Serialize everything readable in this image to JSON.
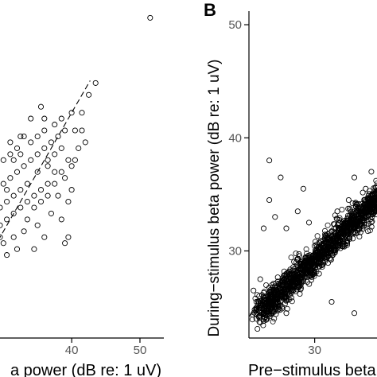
{
  "chart_data": [
    {
      "panel": "",
      "type": "scatter",
      "xlabel": "a power (dB re: 1 uV)",
      "ylabel": "",
      "xlim": [
        26.0,
        53.5
      ],
      "ylim": [
        21.0,
        49.5
      ],
      "x_ticks": [
        40,
        50
      ],
      "x_tick_labels": [
        "40",
        "50"
      ],
      "identity_line": true,
      "grid": false,
      "points_clustered": [
        [
          31.0,
          37.5
        ],
        [
          32.5,
          38.0
        ],
        [
          34.0,
          39.5
        ],
        [
          35.5,
          40.5
        ],
        [
          36.0,
          39.5
        ],
        [
          37.5,
          39.0
        ],
        [
          38.5,
          39.5
        ],
        [
          40.0,
          40.0
        ],
        [
          41.5,
          40.0
        ],
        [
          42.5,
          41.5
        ],
        [
          42.0,
          37.5
        ],
        [
          41.0,
          37.0
        ],
        [
          40.5,
          36.0
        ],
        [
          40.0,
          35.5
        ],
        [
          39.5,
          36.0
        ],
        [
          38.5,
          35.0
        ],
        [
          37.5,
          35.0
        ],
        [
          36.5,
          34.0
        ],
        [
          35.5,
          33.5
        ],
        [
          34.5,
          33.0
        ],
        [
          33.5,
          32.5
        ],
        [
          32.5,
          32.0
        ],
        [
          31.5,
          31.5
        ],
        [
          30.5,
          31.0
        ],
        [
          29.5,
          30.5
        ],
        [
          28.5,
          30.0
        ],
        [
          28.0,
          31.5
        ],
        [
          27.5,
          32.5
        ],
        [
          29.0,
          33.5
        ],
        [
          30.0,
          34.0
        ],
        [
          31.0,
          34.5
        ],
        [
          32.0,
          35.0
        ],
        [
          33.0,
          35.5
        ],
        [
          34.0,
          36.0
        ],
        [
          35.0,
          36.5
        ],
        [
          36.0,
          37.0
        ],
        [
          37.0,
          37.5
        ],
        [
          38.0,
          38.0
        ],
        [
          39.0,
          38.5
        ],
        [
          40.5,
          38.5
        ],
        [
          41.5,
          38.5
        ],
        [
          36.5,
          35.5
        ],
        [
          35.0,
          35.0
        ],
        [
          33.5,
          34.0
        ],
        [
          32.5,
          33.5
        ],
        [
          31.5,
          33.0
        ],
        [
          30.5,
          32.5
        ],
        [
          29.5,
          32.0
        ],
        [
          28.5,
          31.5
        ],
        [
          27.5,
          31.0
        ],
        [
          30.5,
          33.5
        ],
        [
          31.5,
          36.0
        ],
        [
          32.5,
          36.5
        ],
        [
          34.0,
          37.5
        ],
        [
          35.0,
          38.0
        ],
        [
          36.0,
          38.5
        ],
        [
          33.5,
          31.0
        ],
        [
          34.5,
          32.0
        ],
        [
          35.5,
          32.5
        ],
        [
          36.5,
          33.0
        ],
        [
          37.5,
          34.0
        ],
        [
          38.0,
          33.0
        ],
        [
          37.0,
          31.5
        ],
        [
          35.0,
          30.5
        ],
        [
          33.0,
          30.0
        ],
        [
          31.5,
          29.5
        ],
        [
          30.0,
          29.0
        ],
        [
          28.5,
          28.5
        ],
        [
          27.5,
          29.5
        ],
        [
          29.0,
          27.0
        ],
        [
          30.5,
          28.0
        ],
        [
          32.0,
          28.5
        ],
        [
          26.5,
          30.0
        ],
        [
          26.5,
          31.5
        ],
        [
          26.5,
          33.0
        ],
        [
          27.0,
          34.0
        ],
        [
          28.0,
          34.5
        ],
        [
          29.0,
          35.5
        ],
        [
          30.0,
          36.0
        ],
        [
          31.0,
          36.5
        ],
        [
          32.0,
          37.0
        ],
        [
          33.0,
          38.0
        ],
        [
          38.5,
          31.0
        ],
        [
          39.5,
          32.5
        ],
        [
          40.0,
          33.5
        ],
        [
          39.0,
          34.5
        ],
        [
          36.0,
          29.5
        ],
        [
          34.5,
          28.5
        ],
        [
          39.5,
          29.5
        ],
        [
          36.5,
          36.0
        ],
        [
          37.5,
          36.5
        ],
        [
          38.5,
          37.0
        ]
      ],
      "points_outliers": [
        [
          51.5,
          48.0
        ],
        [
          43.5,
          42.5
        ],
        [
          39.0,
          29.0
        ],
        [
          29.5,
          29.5
        ]
      ]
    },
    {
      "panel": "B",
      "type": "scatter",
      "xlabel": "Pre−stimulus beta power",
      "ylabel": "During−stimulus beta power (dB re: 1 uV)",
      "xlim": [
        24.2,
        35.5
      ],
      "ylim": [
        22.3,
        51.2
      ],
      "x_ticks": [
        30
      ],
      "x_tick_labels": [
        "30"
      ],
      "y_ticks": [
        30,
        40,
        50
      ],
      "y_tick_labels": [
        "30",
        "40",
        "50"
      ],
      "identity_line": true,
      "grid": false,
      "cloud": {
        "center_from": [
          25.0,
          24.5
        ],
        "center_to": [
          36.0,
          35.0
        ],
        "spread": 0.9
      },
      "points_sparse": [
        [
          26.0,
          38.0
        ],
        [
          27.0,
          36.5
        ],
        [
          29.0,
          35.5
        ],
        [
          33.5,
          36.5
        ],
        [
          34.5,
          35.5
        ],
        [
          26.0,
          34.5
        ],
        [
          26.5,
          33.0
        ],
        [
          25.5,
          32.0
        ],
        [
          28.5,
          33.5
        ],
        [
          24.6,
          26.5
        ],
        [
          25.2,
          27.5
        ],
        [
          27.5,
          24.5
        ],
        [
          31.5,
          25.5
        ],
        [
          33.5,
          24.5
        ],
        [
          30.0,
          28.0
        ],
        [
          29.5,
          32.5
        ],
        [
          32.0,
          33.5
        ],
        [
          35.0,
          37.0
        ],
        [
          33.0,
          34.5
        ],
        [
          27.5,
          32.0
        ],
        [
          24.7,
          24.8
        ]
      ]
    }
  ]
}
